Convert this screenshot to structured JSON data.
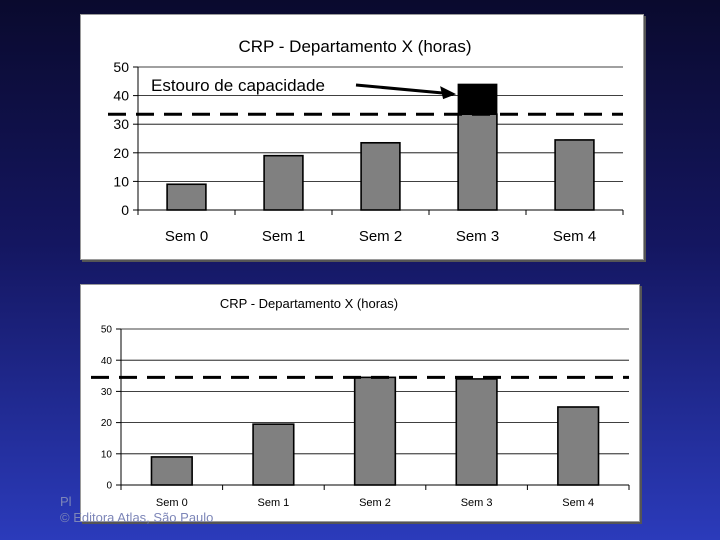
{
  "footer": {
    "line1": "Pl",
    "line2": "© Editora Atlas, São Paulo"
  },
  "chart_data": [
    {
      "type": "bar",
      "title": "CRP - Departamento X (horas)",
      "categories": [
        "Sem 0",
        "Sem 1",
        "Sem 2",
        "Sem 3",
        "Sem 4"
      ],
      "values": [
        9,
        19,
        23.5,
        44,
        24.5
      ],
      "capacity": 33.5,
      "overload_from": 33.5,
      "annotation": "Estouro de capacidade",
      "ylim": [
        0,
        50
      ],
      "yticks": [
        0,
        10,
        20,
        30,
        40,
        50
      ],
      "grid": true,
      "colors": {
        "bar": "#808080",
        "overload": "#000000"
      }
    },
    {
      "type": "bar",
      "title": "CRP - Departamento X (horas)",
      "categories": [
        "Sem 0",
        "Sem 1",
        "Sem 2",
        "Sem 3",
        "Sem 4"
      ],
      "values": [
        9,
        19.5,
        34.5,
        34,
        25
      ],
      "capacity": 34.5,
      "ylim": [
        0,
        50
      ],
      "yticks": [
        0,
        10,
        20,
        30,
        40,
        50
      ],
      "grid": true,
      "colors": {
        "bar": "#808080"
      }
    }
  ]
}
